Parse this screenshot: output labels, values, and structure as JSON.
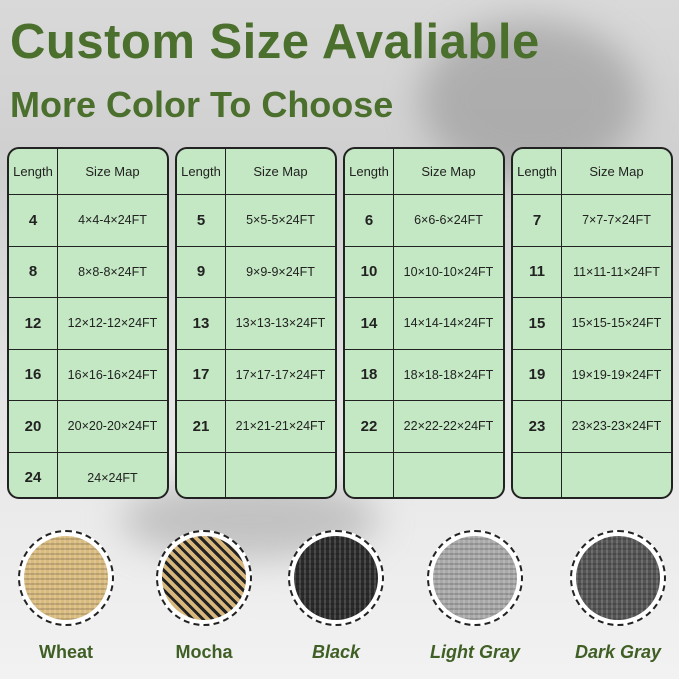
{
  "title": "Custom Size Avaliable",
  "subtitle": "More Color To Choose",
  "header": {
    "length": "Length",
    "size_map": "Size Map"
  },
  "tables": [
    {
      "rows": [
        [
          "4",
          "4×4-4×24FT"
        ],
        [
          "8",
          "8×8-8×24FT"
        ],
        [
          "12",
          "12×12-12×24FT"
        ],
        [
          "16",
          "16×16-16×24FT"
        ],
        [
          "20",
          "20×20-20×24FT"
        ],
        [
          "24",
          "24×24FT"
        ]
      ]
    },
    {
      "rows": [
        [
          "5",
          "5×5-5×24FT"
        ],
        [
          "9",
          "9×9-9×24FT"
        ],
        [
          "13",
          "13×13-13×24FT"
        ],
        [
          "17",
          "17×17-17×24FT"
        ],
        [
          "21",
          "21×21-21×24FT"
        ],
        [
          "",
          ""
        ]
      ]
    },
    {
      "rows": [
        [
          "6",
          "6×6-6×24FT"
        ],
        [
          "10",
          "10×10-10×24FT"
        ],
        [
          "14",
          "14×14-14×24FT"
        ],
        [
          "18",
          "18×18-18×24FT"
        ],
        [
          "22",
          "22×22-22×24FT"
        ],
        [
          "",
          ""
        ]
      ]
    },
    {
      "rows": [
        [
          "7",
          "7×7-7×24FT"
        ],
        [
          "11",
          "11×11-11×24FT"
        ],
        [
          "15",
          "15×15-15×24FT"
        ],
        [
          "19",
          "19×19-19×24FT"
        ],
        [
          "23",
          "23×23-23×24FT"
        ],
        [
          "",
          ""
        ]
      ]
    }
  ],
  "colors": [
    {
      "name": "Wheat",
      "swatch": "#d9bb7e",
      "italic": false
    },
    {
      "name": "Mocha",
      "swatch": "#8a7048",
      "italic": false
    },
    {
      "name": "Black",
      "swatch": "#2b2b2b",
      "italic": true
    },
    {
      "name": "Light Gray",
      "swatch": "#a9a9a9",
      "italic": true
    },
    {
      "name": "Dark Gray",
      "swatch": "#555555",
      "italic": true
    }
  ],
  "accent": "#4b6f2c",
  "table_bg": "#c3e8c3"
}
